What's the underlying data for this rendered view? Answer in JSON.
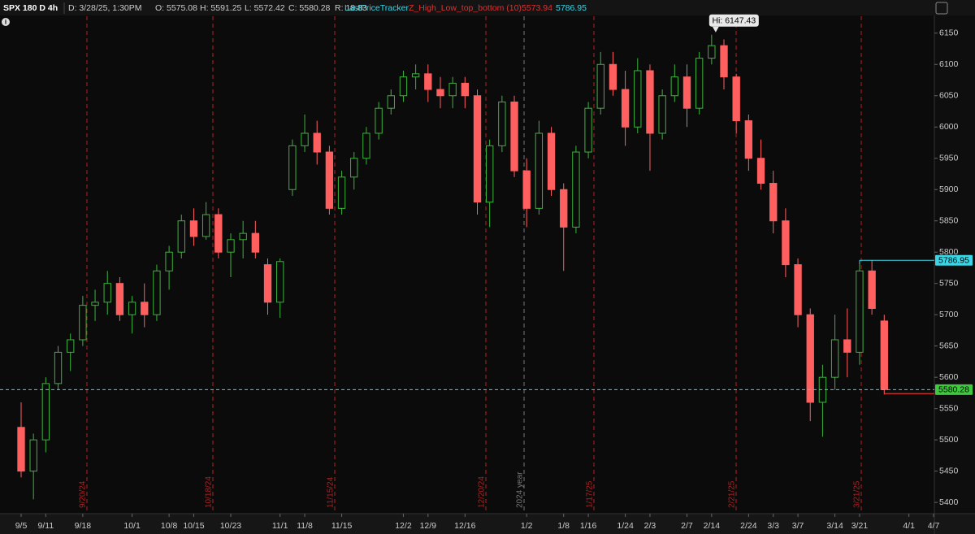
{
  "chart_data": {
    "type": "candlestick",
    "header": {
      "symbol": "SPX 180 D 4h",
      "date": "D: 3/28/25, 1:30PM",
      "open": "O: 5575.08",
      "high": "H: 5591.25",
      "low": "L: 5572.42",
      "close": "C: 5580.28",
      "range": "R: 18.83",
      "study1": "LastPriceTracker",
      "study2": "Z_High_Low_top_bottom (10)"
    },
    "z_level": 5573.94,
    "z_color": "#e03030",
    "hi_label": "Hi: 6147.43",
    "price_tags": [
      {
        "value": 5786.95,
        "color": "#3ad6e6"
      },
      {
        "value": 5580.28,
        "color": "#3ec93e"
      }
    ],
    "up_color": "#3cb43c",
    "down_color": "#ff5f5f",
    "categories": [
      "9/5",
      null,
      "9/11",
      null,
      null,
      "9/18",
      null,
      null,
      null,
      "10/1",
      null,
      null,
      "10/8",
      null,
      "10/15",
      null,
      null,
      "10/23",
      null,
      null,
      null,
      "11/1",
      null,
      "11/8",
      null,
      null,
      "11/15",
      null,
      null,
      null,
      null,
      "12/2",
      null,
      "12/9",
      null,
      null,
      "12/16",
      null,
      null,
      null,
      null,
      "1/2",
      null,
      null,
      "1/8",
      null,
      "1/16",
      null,
      null,
      "1/24",
      null,
      "2/3",
      null,
      null,
      "2/7",
      null,
      "2/14",
      null,
      null,
      "2/24",
      null,
      "3/3",
      null,
      "3/7",
      null,
      null,
      "3/14",
      null,
      "3/21",
      null,
      null,
      null,
      "4/1",
      null,
      "4/7"
    ],
    "open": [
      5520,
      5450,
      5500,
      5590,
      5640,
      5660,
      5715,
      5720,
      5750,
      5700,
      5720,
      5700,
      5770,
      5800,
      5850,
      5825,
      5860,
      5800,
      5820,
      5830,
      5780,
      5720,
      5900,
      5970,
      5990,
      5960,
      5870,
      5920,
      5950,
      5990,
      6030,
      6050,
      6080,
      6085,
      6060,
      6050,
      6070,
      6050,
      5880,
      5970,
      6040,
      5930,
      5870,
      5990,
      5900,
      5840,
      5960,
      6030,
      6100,
      6060,
      6000,
      6090,
      5990,
      6050,
      6080,
      6030,
      6110,
      6130,
      6080,
      6010,
      5950,
      5910,
      5850,
      5780,
      5700,
      5560,
      5600,
      5660,
      5640,
      5770,
      5690,
      null,
      null,
      null,
      null
    ],
    "high": [
      5560,
      5510,
      5600,
      5650,
      5670,
      5730,
      5740,
      5770,
      5760,
      5730,
      5750,
      5780,
      5810,
      5860,
      5870,
      5880,
      5870,
      5830,
      5850,
      5850,
      5790,
      5790,
      5980,
      6020,
      6010,
      5970,
      5930,
      5960,
      6000,
      6040,
      6060,
      6090,
      6100,
      6100,
      6080,
      6080,
      6080,
      6060,
      5980,
      6050,
      6050,
      5950,
      6010,
      6000,
      5910,
      5970,
      6040,
      6120,
      6120,
      6090,
      6110,
      6100,
      6060,
      6100,
      6100,
      6120,
      6147.43,
      6140,
      6085,
      6020,
      5980,
      5930,
      5870,
      5790,
      5710,
      5620,
      5700,
      5710,
      5780,
      5787,
      5700,
      null,
      null,
      null,
      null
    ],
    "low": [
      5440,
      5405,
      5480,
      5580,
      5610,
      5650,
      5690,
      5700,
      5690,
      5670,
      5680,
      5690,
      5740,
      5790,
      5810,
      5820,
      5790,
      5760,
      5790,
      5790,
      5700,
      5695,
      5890,
      5960,
      5940,
      5860,
      5860,
      5900,
      5940,
      5980,
      6020,
      6040,
      6060,
      6040,
      6030,
      6030,
      6030,
      5860,
      5840,
      5960,
      5920,
      5840,
      5860,
      5890,
      5770,
      5830,
      5950,
      6020,
      6050,
      5970,
      5990,
      5930,
      5980,
      6040,
      6000,
      6020,
      6100,
      6060,
      5990,
      5930,
      5900,
      5830,
      5760,
      5680,
      5530,
      5505,
      5580,
      5600,
      5620,
      5700,
      5572.42,
      null,
      null,
      null,
      null
    ],
    "close": [
      5450,
      5500,
      5590,
      5640,
      5660,
      5715,
      5720,
      5750,
      5700,
      5720,
      5700,
      5770,
      5800,
      5850,
      5825,
      5860,
      5800,
      5820,
      5830,
      5800,
      5720,
      5785,
      5970,
      5990,
      5960,
      5870,
      5920,
      5950,
      5990,
      6030,
      6050,
      6080,
      6085,
      6060,
      6050,
      6070,
      6050,
      5880,
      5970,
      6040,
      5930,
      5870,
      5990,
      5900,
      5840,
      5960,
      6030,
      6100,
      6060,
      6000,
      6090,
      5990,
      6050,
      6080,
      6030,
      6110,
      6130,
      6080,
      6010,
      5950,
      5910,
      5850,
      5780,
      5700,
      5560,
      5600,
      5660,
      5640,
      5770,
      5710,
      5580.28,
      null,
      null,
      null,
      null
    ],
    "ylim": [
      5382,
      6177
    ],
    "yticks": [
      5400,
      5450,
      5500,
      5550,
      5600,
      5650,
      5700,
      5750,
      5800,
      5850,
      5900,
      5950,
      6000,
      6050,
      6100,
      6150
    ],
    "events": [
      {
        "label": "9/20/24",
        "color": "#b02020"
      },
      {
        "label": "10/18/24",
        "color": "#b02020"
      },
      {
        "label": "11/15/24",
        "color": "#b02020"
      },
      {
        "label": "2024 year",
        "color": "#777777"
      },
      {
        "label": "12/20/24",
        "color": "#b02020"
      },
      {
        "label": "1/17/25",
        "color": "#b02020"
      },
      {
        "label": "2/21/25",
        "color": "#b02020"
      },
      {
        "label": "3/21/25",
        "color": "#b02020"
      }
    ]
  }
}
